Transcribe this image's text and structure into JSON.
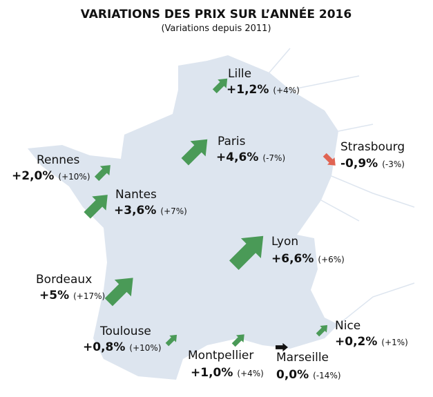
{
  "title": "VARIATIONS DES PRIX SUR L’ANNÉE 2016",
  "subtitle": "(Variations depuis 2011)",
  "cities": [
    {
      "name": "Lille",
      "variation": "+1,2%",
      "since_2011": "(+4%)"
    },
    {
      "name": "Paris",
      "variation": "+4,6%",
      "since_2011": "(-7%)"
    },
    {
      "name": "Strasbourg",
      "variation": "-0,9%",
      "since_2011": "(-3%)"
    },
    {
      "name": "Rennes",
      "variation": "+2,0%",
      "since_2011": "(+10%)"
    },
    {
      "name": "Nantes",
      "variation": "+3,6%",
      "since_2011": "(+7%)"
    },
    {
      "name": "Lyon",
      "variation": "+6,6%",
      "since_2011": "(+6%)"
    },
    {
      "name": "Bordeaux",
      "variation": "+5%",
      "since_2011": "(+17%)"
    },
    {
      "name": "Toulouse",
      "variation": "+0,8%",
      "since_2011": "(+10%)"
    },
    {
      "name": "Montpellier",
      "variation": "+1,0%",
      "since_2011": "(+4%)"
    },
    {
      "name": "Marseille",
      "variation": "0,0%",
      "since_2011": "(-14%)"
    },
    {
      "name": "Nice",
      "variation": "+0,2%",
      "since_2011": "(+1%)"
    }
  ]
}
